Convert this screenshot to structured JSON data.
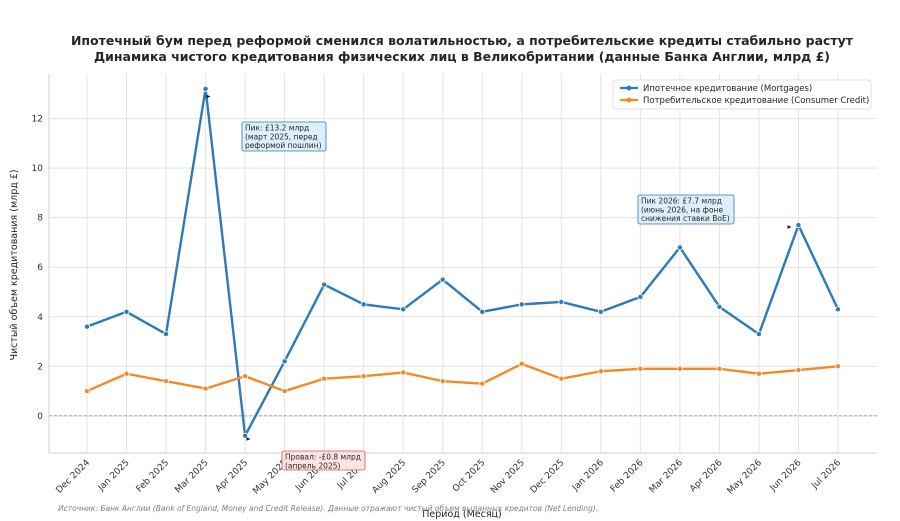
{
  "chart_data": {
    "type": "line",
    "title": "Ипотечный бум перед реформой сменился волатильностью, а потребительские кредиты стабильно растут",
    "subtitle": "Динамика чистого кредитования физических лиц в Великобритании (данные Банка Англии, млрд £)",
    "xlabel": "Период (Месяц)",
    "ylabel": "Чистый объем кредитования (млрд £)",
    "categories": [
      "Dec 2024",
      "Jan 2025",
      "Feb 2025",
      "Mar 2025",
      "Apr 2025",
      "May 2025",
      "Jun 2025",
      "Jul 2025",
      "Aug 2025",
      "Sep 2025",
      "Oct 2025",
      "Nov 2025",
      "Dec 2025",
      "Jan 2026",
      "Feb 2026",
      "Mar 2026",
      "Apr 2026",
      "May 2026",
      "Jun 2026",
      "Jul 2026"
    ],
    "ylim": [
      -1.5,
      13.8
    ],
    "yticks": [
      0,
      2,
      4,
      6,
      8,
      10,
      12
    ],
    "yticks_labels": [
      "0",
      "2",
      "4",
      "6",
      "8",
      "10",
      "12"
    ],
    "grid": true,
    "legend_position": "top-right",
    "series": [
      {
        "name": "Ипотечное кредитование (Mortgages)",
        "color": "#2e7bb4",
        "values": [
          3.6,
          4.2,
          3.3,
          13.2,
          -0.8,
          2.2,
          5.3,
          4.5,
          4.3,
          5.5,
          4.2,
          4.5,
          4.6,
          4.2,
          4.8,
          6.8,
          4.4,
          3.3,
          7.7,
          4.3
        ]
      },
      {
        "name": "Потребительское кредитование (Consumer Credit)",
        "color": "#f28a26",
        "values": [
          1.0,
          1.7,
          1.4,
          1.1,
          1.6,
          1.0,
          1.5,
          1.6,
          1.75,
          1.4,
          1.3,
          2.1,
          1.5,
          1.8,
          1.9,
          1.9,
          1.9,
          1.7,
          1.85,
          2.0
        ]
      }
    ],
    "annotations": [
      {
        "name": "peak-2025",
        "text": [
          "Пик: £13.2 млрд",
          "(март 2025, перед",
          "реформой пошлин)"
        ],
        "target_index": 3,
        "target_value": 13.2,
        "box_fill": "#ddeffa",
        "box_stroke": "#2e7bb4"
      },
      {
        "name": "trough-2025",
        "text": [
          "Провал: -£0.8 млрд",
          "(апрель 2025)"
        ],
        "target_index": 4,
        "target_value": -0.8,
        "box_fill": "#fde4e4",
        "box_stroke": "#d65656"
      },
      {
        "name": "peak-2026",
        "text": [
          "Пик 2026: £7.7 млрд",
          "(июнь 2026, на фоне",
          "снижения ставки BoE)"
        ],
        "target_index": 18,
        "target_value": 7.7,
        "box_fill": "#ddeffa",
        "box_stroke": "#2e7bb4"
      }
    ],
    "source": "Источник: Банк Англии (Bank of England, Money and Credit Release). Данные отражают чистый объем выданных кредитов (Net Lending)."
  }
}
